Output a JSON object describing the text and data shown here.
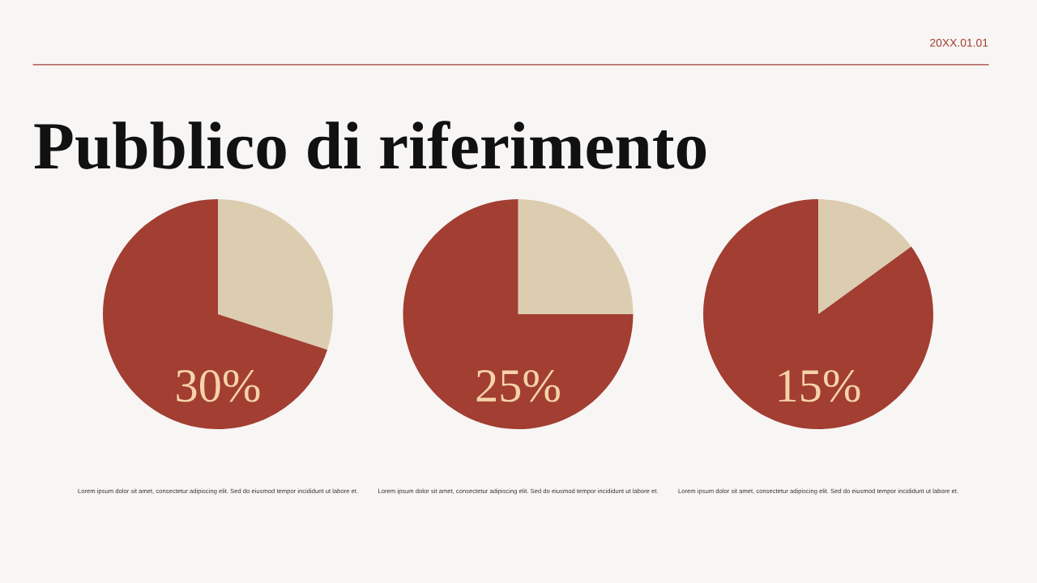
{
  "chart_data": [
    {
      "type": "other",
      "title": "Pubblico di riferimento",
      "annotations": [
        "20XX.01.01"
      ]
    },
    {
      "type": "pie",
      "categories": [
        null,
        null
      ],
      "values": [
        30,
        70
      ],
      "colors": [
        "#dccdb0",
        "#a23e32"
      ],
      "annotations": [
        "30%",
        "Lorem ipsum dolor sit amet, consectetur adipiscing elit. Sed do eiusmod tempor incididunt ut labore et."
      ]
    },
    {
      "type": "pie",
      "categories": [
        null,
        null
      ],
      "values": [
        25,
        75
      ],
      "colors": [
        "#dccdb0",
        "#a23e32"
      ],
      "annotations": [
        "25%",
        "Lorem ipsum dolor sit amet, consectetur adipiscing elit. Sed do eiusmod tempor incididunt ut labore et."
      ]
    },
    {
      "type": "pie",
      "categories": [
        null,
        null
      ],
      "values": [
        15,
        85
      ],
      "colors": [
        "#dccdb0",
        "#a23e32"
      ],
      "annotations": [
        "15%",
        "Lorem ipsum dolor sit amet, consectetur adipiscing elit. Sed do eiusmod tempor incididunt ut labore et."
      ]
    }
  ]
}
